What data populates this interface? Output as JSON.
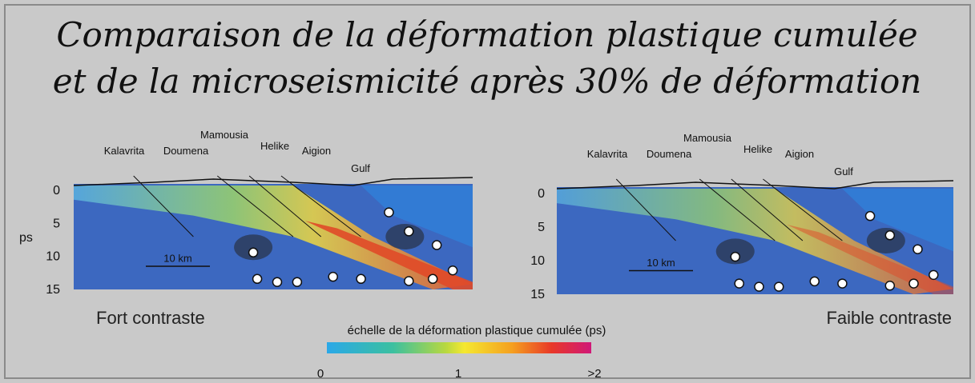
{
  "title": {
    "line1": "Comparaison de la déformation plastique cumulée",
    "line2": "et de la microseismicité après 30% de déformation"
  },
  "depth_axis_label": "ps",
  "panels": [
    {
      "caption": "Fort contraste",
      "places": [
        "Kalavrita",
        "Doumena",
        "Mamousia",
        "Helike",
        "Aigion",
        "Gulf"
      ],
      "depth_ticks": [
        "0",
        "5",
        "10",
        "15"
      ],
      "scale_bar": "10 km"
    },
    {
      "caption": "Faible contraste",
      "places": [
        "Kalavrita",
        "Doumena",
        "Mamousia",
        "Helike",
        "Aigion",
        "Gulf"
      ],
      "depth_ticks": [
        "0",
        "5",
        "10",
        "15"
      ],
      "scale_bar": "10 km"
    }
  ],
  "colorbar": {
    "title": "échelle de la déformation plastique cumulée (ps)",
    "labels": [
      "0",
      "1",
      ">2"
    ]
  }
}
